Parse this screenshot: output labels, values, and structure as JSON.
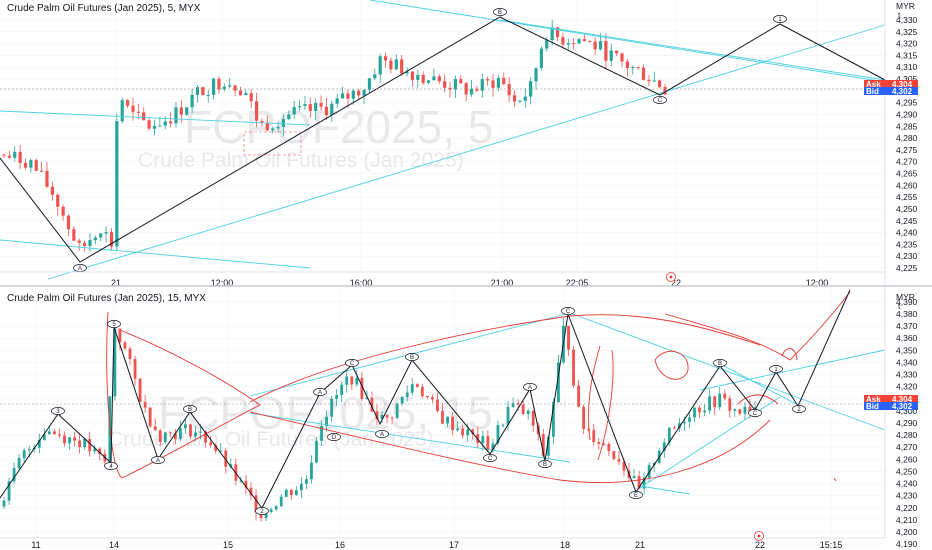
{
  "colors": {
    "up": "#26a69a",
    "down": "#ef5350",
    "trend": "#4dd0e1",
    "wave": "#131722",
    "draw": "#e53935",
    "ask": "#f44336",
    "bid": "#2962ff"
  },
  "top_panel": {
    "title": "Crude Palm Oil Futures (Jan 2025), 5, MYX",
    "watermark_symbol": "FCPOF2025, 5",
    "watermark_name": "Crude Palm Oil Futures (Jan 2025)",
    "currency": "MYR",
    "currency_sub": "t",
    "ask_label": "Ask",
    "ask_value": "4,304",
    "bid_label": "Bid",
    "bid_value": "4,302",
    "price_ticks": [
      "4,330",
      "4,325",
      "4,320",
      "4,315",
      "4,310",
      "4,305",
      "4,300",
      "4,295",
      "4,290",
      "4,285",
      "4,280",
      "4,275",
      "4,270",
      "4,265",
      "4,260",
      "4,255",
      "4,250",
      "4,245",
      "4,240",
      "4,235",
      "4,230",
      "4,225"
    ],
    "time_ticks": [
      "21",
      "12:00",
      "16:00",
      "21:00",
      "22:05",
      "22",
      "12:00"
    ],
    "wave_labels": [
      "A",
      "B",
      "C",
      "1"
    ]
  },
  "bottom_panel": {
    "title": "Crude Palm Oil Futures (Jan 2025), 15, MYX",
    "watermark_symbol": "FCPOF2025, 15",
    "watermark_name": "Crude Palm Oil Futures (Jan 2025)",
    "currency": "MYR",
    "currency_sub": "t",
    "ask_label": "Ask",
    "ask_value": "4,304",
    "bid_label": "Bid",
    "bid_value": "4,302",
    "price_ticks": [
      "4,390",
      "4,380",
      "4,370",
      "4,360",
      "4,350",
      "4,340",
      "4,330",
      "4,320",
      "4,310",
      "4,300",
      "4,290",
      "4,280",
      "4,270",
      "4,260",
      "4,250",
      "4,240",
      "4,230",
      "4,220",
      "4,210",
      "4,200",
      "4,190"
    ],
    "time_ticks": [
      "11",
      "14",
      "15",
      "16",
      "17",
      "18",
      "21",
      "22",
      "15:15"
    ],
    "wave_labels": [
      "1",
      "2",
      "3",
      "4",
      "5",
      "A",
      "B",
      "C",
      "D",
      "E"
    ]
  },
  "chart_data": [
    {
      "type": "candlestick",
      "title": "Crude Palm Oil Futures (Jan 2025), 5, MYX",
      "currency": "MYR",
      "ylim": [
        4222,
        4338
      ],
      "last_price": 4302,
      "ask": 4304,
      "bid": 4302,
      "time_labels": [
        "21",
        "12:00",
        "16:00",
        "21:00",
        "22:05",
        "22",
        "12:00"
      ],
      "price_ticks": [
        4330,
        4325,
        4320,
        4315,
        4310,
        4305,
        4300,
        4295,
        4290,
        4285,
        4280,
        4275,
        4270,
        4265,
        4260,
        4255,
        4250,
        4245,
        4240,
        4235,
        4230,
        4225
      ],
      "waves": [
        {
          "label": "A",
          "price": 4228
        },
        {
          "label": "B",
          "price": 4333
        },
        {
          "label": "C",
          "price": 4302
        },
        {
          "label": "1",
          "price": 4331
        }
      ]
    },
    {
      "type": "candlestick",
      "title": "Crude Palm Oil Futures (Jan 2025), 15, MYX",
      "currency": "MYR",
      "ylim": [
        4186,
        4396
      ],
      "last_price": 4302,
      "ask": 4304,
      "bid": 4302,
      "time_labels": [
        "11",
        "14",
        "15",
        "16",
        "17",
        "18",
        "21",
        "22",
        "15:15"
      ],
      "price_ticks": [
        4390,
        4380,
        4370,
        4360,
        4350,
        4340,
        4330,
        4320,
        4310,
        4300,
        4290,
        4280,
        4270,
        4260,
        4250,
        4240,
        4230,
        4220,
        4210,
        4200,
        4190
      ],
      "waves": [
        {
          "label": "3",
          "price": 4288
        },
        {
          "label": "4",
          "price": 4253
        },
        {
          "label": "5",
          "price": 4373
        },
        {
          "label": "A",
          "price": 4257
        },
        {
          "label": "B",
          "price": 4288
        },
        {
          "label": "C",
          "price": 4345
        },
        {
          "label": "D",
          "price": 4283
        },
        {
          "label": "E",
          "price": 4226
        },
        {
          "label": "1",
          "price": 4325
        },
        {
          "label": "2",
          "price": 4296
        }
      ]
    }
  ]
}
